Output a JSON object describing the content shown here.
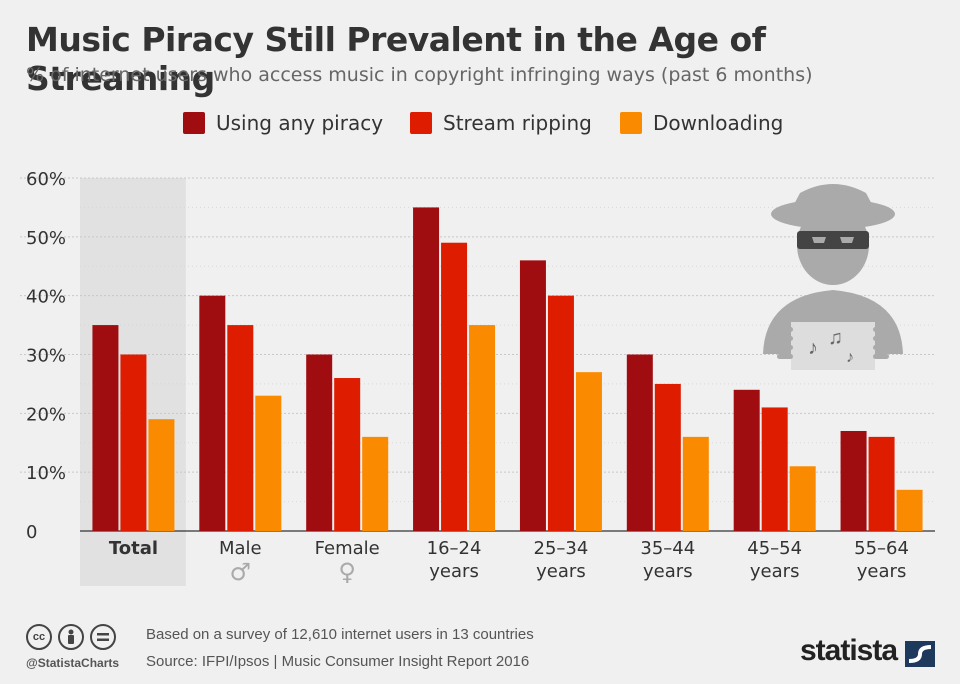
{
  "header": {
    "title": "Music Piracy Still Prevalent in the Age of Streaming",
    "subtitle": "% of internet users who access music in copyright infringing ways (past 6 months)"
  },
  "footer": {
    "note": "Based on a survey of 12,610 internet users in 13 countries",
    "source": "Source: IFPI/Ipsos | Music Consumer Insight Report 2016",
    "handle": "@StatistaCharts",
    "brand": "statista",
    "license_icons": [
      "cc-icon",
      "by-icon",
      "nd-icon"
    ]
  },
  "colors": {
    "background": "#f0f0f0",
    "highlight": "#e1e1e1",
    "series": [
      "#a00d11",
      "#dd1c00",
      "#fa8a00"
    ]
  },
  "chart_data": {
    "type": "bar",
    "categories": [
      [
        "Total"
      ],
      [
        "Male"
      ],
      [
        "Female"
      ],
      [
        "16–24",
        "years"
      ],
      [
        "25–34",
        "years"
      ],
      [
        "35–44",
        "years"
      ],
      [
        "45–54",
        "years"
      ],
      [
        "55–64",
        "years"
      ]
    ],
    "category_symbols": [
      "",
      "♂",
      "♀",
      "",
      "",
      "",
      "",
      ""
    ],
    "highlighted_category": "Total",
    "series": [
      {
        "name": "Using any piracy",
        "values": [
          35,
          40,
          30,
          55,
          46,
          30,
          24,
          17
        ]
      },
      {
        "name": "Stream ripping",
        "values": [
          30,
          35,
          26,
          49,
          40,
          25,
          21,
          16
        ]
      },
      {
        "name": "Downloading",
        "values": [
          19,
          23,
          16,
          35,
          27,
          16,
          11,
          7
        ]
      }
    ],
    "yticks": [
      "0",
      "10%",
      "20%",
      "30%",
      "40%",
      "50%",
      "60%"
    ],
    "ylim": [
      0,
      60
    ],
    "grid": true,
    "legend_position": "top-center",
    "illustration": "pirate-icon"
  }
}
